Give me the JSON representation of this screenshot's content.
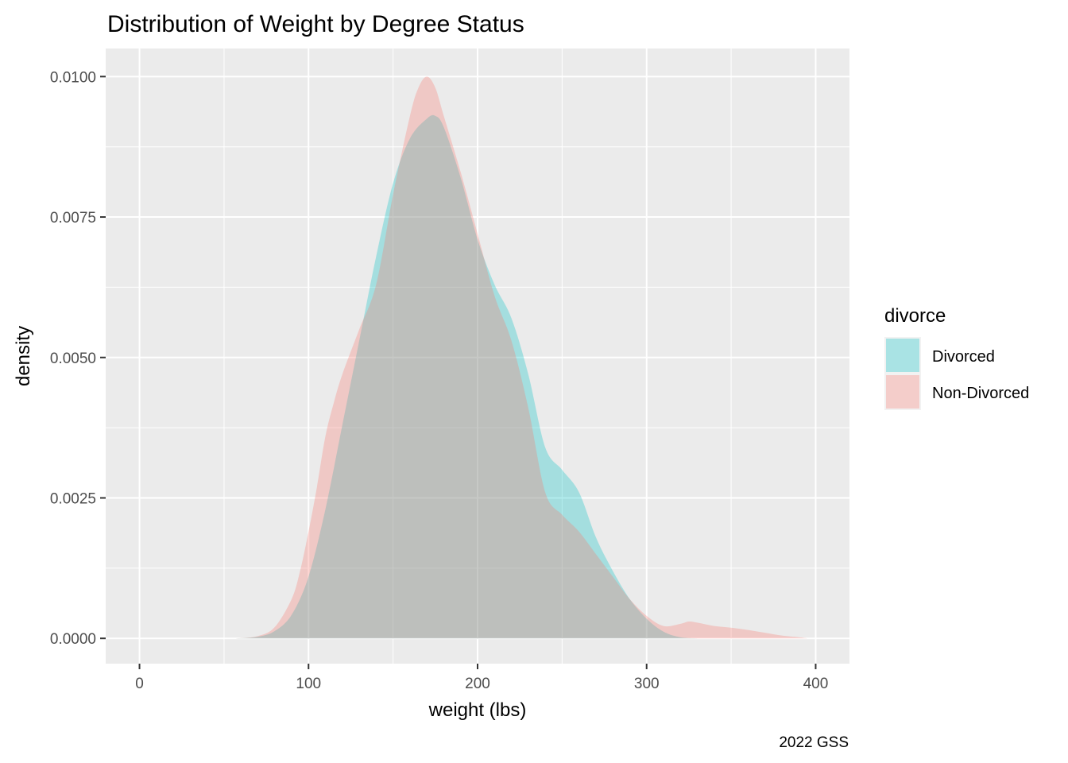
{
  "chart_data": {
    "type": "area",
    "title": "Distribution of Weight by Degree Status",
    "xlabel": "weight (lbs)",
    "ylabel": "density",
    "caption": "2022 GSS",
    "xlim": [
      -20,
      420
    ],
    "ylim": [
      -0.00045,
      0.0105
    ],
    "x_ticks": [
      0,
      100,
      200,
      300,
      400
    ],
    "y_ticks": [
      0.0,
      0.0025,
      0.005,
      0.0075,
      0.01
    ],
    "x_tick_labels": [
      "0",
      "100",
      "200",
      "300",
      "400"
    ],
    "y_tick_labels": [
      "0.0000",
      "0.0025",
      "0.0050",
      "0.0075",
      "0.0100"
    ],
    "grid": true,
    "legend": {
      "title": "divorce",
      "position": "right",
      "entries": [
        "Divorced",
        "Non-Divorced"
      ]
    },
    "series": [
      {
        "name": "Divorced",
        "color": "#00BFC4",
        "opacity": 0.3,
        "x": [
          57,
          70,
          80,
          90,
          100,
          110,
          120,
          130,
          140,
          150,
          160,
          170,
          175,
          180,
          190,
          200,
          210,
          220,
          230,
          240,
          250,
          260,
          270,
          280,
          290,
          300,
          310,
          320,
          330
        ],
        "y": [
          0.0,
          3e-05,
          0.00013,
          0.00042,
          0.0011,
          0.0023,
          0.0038,
          0.0053,
          0.0068,
          0.0081,
          0.0089,
          0.00925,
          0.0093,
          0.0091,
          0.0082,
          0.0071,
          0.0063,
          0.0057,
          0.0047,
          0.0034,
          0.003,
          0.0026,
          0.0018,
          0.0012,
          0.0007,
          0.00035,
          0.00012,
          2e-05,
          0.0
        ]
      },
      {
        "name": "Non-Divorced",
        "color": "#F8766D",
        "opacity": 0.3,
        "x": [
          57,
          70,
          80,
          90,
          95,
          100,
          105,
          110,
          115,
          120,
          130,
          140,
          150,
          160,
          165,
          170,
          175,
          180,
          190,
          200,
          210,
          220,
          230,
          240,
          250,
          260,
          270,
          280,
          290,
          300,
          310,
          320,
          325,
          330,
          340,
          350,
          360,
          370,
          380,
          390,
          395
        ],
        "y": [
          0.0,
          4e-05,
          0.0002,
          0.0007,
          0.0012,
          0.0019,
          0.0027,
          0.0036,
          0.0042,
          0.0047,
          0.0055,
          0.0063,
          0.0079,
          0.0093,
          0.0098,
          0.01,
          0.0098,
          0.0093,
          0.0083,
          0.0072,
          0.0061,
          0.0053,
          0.0041,
          0.0026,
          0.0022,
          0.0019,
          0.0015,
          0.0011,
          0.0007,
          0.0004,
          0.00022,
          0.00026,
          0.0003,
          0.00028,
          0.00022,
          0.00019,
          0.00015,
          0.0001,
          5e-05,
          2e-05,
          0.0
        ]
      }
    ]
  }
}
